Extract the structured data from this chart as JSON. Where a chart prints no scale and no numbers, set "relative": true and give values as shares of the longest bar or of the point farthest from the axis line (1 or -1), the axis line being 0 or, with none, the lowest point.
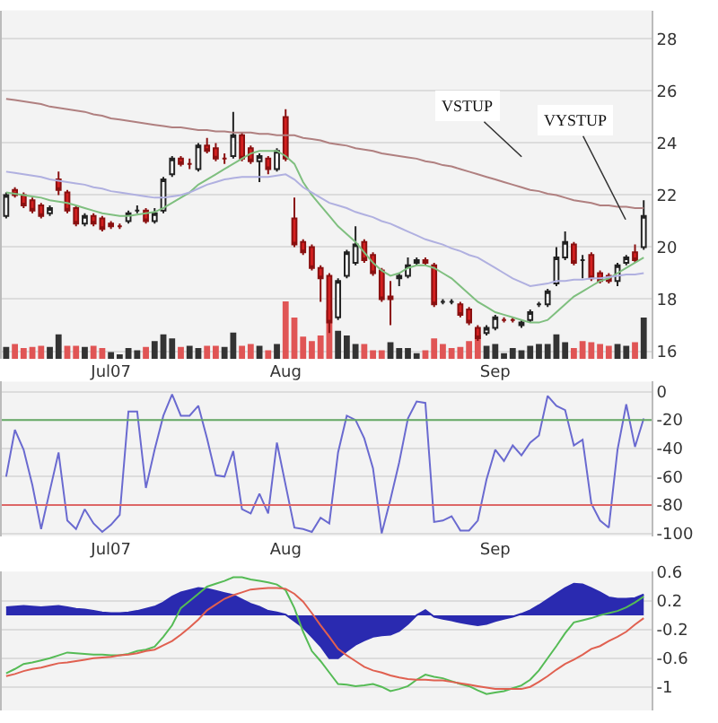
{
  "chart_data": [
    {
      "type": "candlestick",
      "categories": [
        null,
        null,
        null,
        null,
        null,
        null,
        null,
        null,
        null,
        null,
        null,
        null,
        "Jul07",
        null,
        null,
        null,
        null,
        null,
        null,
        null,
        null,
        null,
        null,
        null,
        null,
        null,
        null,
        null,
        null,
        null,
        null,
        null,
        "Aug",
        null,
        null,
        null,
        null,
        null,
        null,
        null,
        null,
        null,
        null,
        null,
        null,
        null,
        null,
        null,
        null,
        null,
        null,
        null,
        null,
        null,
        null,
        null,
        "Sep",
        null,
        null,
        null,
        null,
        null,
        null,
        null,
        null,
        null,
        null,
        null,
        null,
        null,
        null,
        null,
        null,
        null
      ],
      "ohlc": [
        [
          21.2,
          22.1,
          21.1,
          22.0
        ],
        [
          22.2,
          22.3,
          21.9,
          22.0
        ],
        [
          22.0,
          22.1,
          21.5,
          21.6
        ],
        [
          21.8,
          21.9,
          21.3,
          21.4
        ],
        [
          21.6,
          21.7,
          21.1,
          21.2
        ],
        [
          21.3,
          21.6,
          21.2,
          21.5
        ],
        [
          22.6,
          22.9,
          22.0,
          22.2
        ],
        [
          22.1,
          22.2,
          21.3,
          21.4
        ],
        [
          21.5,
          21.6,
          20.8,
          20.9
        ],
        [
          20.9,
          21.3,
          20.8,
          21.2
        ],
        [
          21.2,
          21.3,
          20.8,
          20.9
        ],
        [
          21.1,
          21.2,
          20.6,
          20.7
        ],
        [
          20.9,
          21.0,
          20.7,
          20.8
        ],
        [
          20.8,
          20.9,
          20.7,
          20.8
        ],
        [
          21.0,
          21.4,
          20.9,
          21.3
        ],
        [
          21.4,
          21.6,
          21.3,
          21.4
        ],
        [
          21.4,
          21.5,
          20.9,
          21.0
        ],
        [
          21.0,
          21.5,
          20.9,
          21.3
        ],
        [
          21.4,
          22.7,
          21.3,
          22.6
        ],
        [
          22.8,
          23.5,
          22.7,
          23.4
        ],
        [
          23.4,
          23.5,
          23.1,
          23.2
        ],
        [
          23.2,
          23.4,
          23.0,
          23.2
        ],
        [
          23.0,
          24.0,
          22.9,
          23.9
        ],
        [
          23.9,
          24.2,
          23.6,
          23.7
        ],
        [
          23.8,
          24.0,
          23.3,
          23.4
        ],
        [
          23.4,
          23.6,
          23.2,
          23.4
        ],
        [
          23.5,
          25.2,
          23.4,
          24.3
        ],
        [
          24.3,
          24.4,
          23.3,
          23.4
        ],
        [
          23.8,
          23.9,
          23.2,
          23.3
        ],
        [
          23.3,
          23.6,
          22.5,
          23.5
        ],
        [
          23.4,
          23.5,
          22.8,
          23.0
        ],
        [
          23.0,
          23.8,
          22.9,
          23.7
        ],
        [
          25.0,
          25.3,
          23.3,
          23.4
        ],
        [
          21.1,
          21.9,
          20.0,
          20.1
        ],
        [
          20.2,
          20.3,
          19.7,
          19.8
        ],
        [
          20.0,
          20.1,
          19.1,
          19.2
        ],
        [
          19.2,
          19.3,
          17.9,
          18.8
        ],
        [
          18.9,
          19.0,
          16.7,
          17.1
        ],
        [
          17.3,
          18.8,
          17.2,
          18.7
        ],
        [
          18.9,
          19.9,
          18.8,
          19.8
        ],
        [
          19.4,
          20.8,
          19.3,
          20.1
        ],
        [
          20.2,
          20.3,
          19.4,
          19.5
        ],
        [
          19.7,
          19.8,
          18.9,
          19.0
        ],
        [
          19.1,
          19.2,
          17.9,
          18.0
        ],
        [
          18.1,
          18.7,
          17.0,
          18.0
        ],
        [
          18.8,
          19.0,
          18.5,
          18.9
        ],
        [
          18.9,
          19.6,
          18.8,
          19.3
        ],
        [
          19.4,
          19.6,
          19.3,
          19.5
        ],
        [
          19.5,
          19.6,
          19.3,
          19.4
        ],
        [
          19.3,
          19.4,
          17.7,
          17.8
        ],
        [
          17.9,
          18.0,
          17.8,
          17.9
        ],
        [
          17.9,
          18.0,
          17.8,
          17.9
        ],
        [
          17.8,
          17.9,
          17.3,
          17.4
        ],
        [
          17.6,
          17.7,
          17.0,
          17.1
        ],
        [
          16.9,
          17.0,
          16.4,
          16.5
        ],
        [
          16.7,
          17.0,
          16.6,
          16.9
        ],
        [
          16.9,
          17.4,
          16.8,
          17.3
        ],
        [
          17.2,
          17.3,
          17.1,
          17.2
        ],
        [
          17.2,
          17.3,
          17.1,
          17.2
        ],
        [
          17.0,
          17.2,
          16.9,
          17.1
        ],
        [
          17.2,
          17.6,
          17.1,
          17.5
        ],
        [
          17.8,
          17.9,
          17.7,
          17.8
        ],
        [
          17.8,
          18.4,
          17.7,
          18.3
        ],
        [
          18.6,
          20.0,
          18.5,
          19.6
        ],
        [
          19.6,
          20.6,
          19.5,
          20.2
        ],
        [
          20.1,
          20.2,
          19.3,
          19.4
        ],
        [
          19.5,
          19.7,
          18.8,
          19.5
        ],
        [
          19.7,
          19.8,
          18.7,
          18.8
        ],
        [
          19.0,
          19.1,
          18.6,
          18.7
        ],
        [
          18.9,
          19.0,
          18.6,
          18.7
        ],
        [
          18.7,
          19.4,
          18.5,
          19.3
        ],
        [
          19.4,
          19.7,
          19.3,
          19.6
        ],
        [
          19.8,
          20.1,
          19.4,
          19.5
        ],
        [
          20.0,
          21.8,
          19.9,
          21.2
        ]
      ],
      "series": [
        {
          "type": "line",
          "color": "#7fbf7f",
          "values": [
            22.1,
            22.05,
            22.0,
            21.95,
            21.9,
            21.8,
            21.75,
            21.7,
            21.6,
            21.5,
            21.4,
            21.3,
            21.25,
            21.2,
            21.2,
            21.25,
            21.3,
            21.35,
            21.5,
            21.7,
            21.9,
            22.1,
            22.4,
            22.6,
            22.8,
            23.0,
            23.2,
            23.4,
            23.6,
            23.7,
            23.7,
            23.7,
            23.5,
            23.2,
            22.5,
            22.0,
            21.6,
            21.2,
            20.8,
            20.5,
            20.2,
            19.8,
            19.4,
            19.1,
            18.9,
            19.0,
            19.2,
            19.3,
            19.3,
            19.2,
            19.0,
            18.8,
            18.5,
            18.2,
            17.9,
            17.7,
            17.5,
            17.4,
            17.3,
            17.2,
            17.1,
            17.1,
            17.2,
            17.5,
            17.8,
            18.1,
            18.3,
            18.5,
            18.7,
            18.8,
            19.0,
            19.2,
            19.4,
            19.6
          ]
        },
        {
          "type": "line",
          "color": "#b0b0e0",
          "values": [
            22.9,
            22.85,
            22.8,
            22.75,
            22.7,
            22.6,
            22.55,
            22.5,
            22.45,
            22.4,
            22.3,
            22.25,
            22.15,
            22.1,
            22.05,
            22.0,
            21.95,
            21.9,
            21.9,
            21.95,
            22.0,
            22.1,
            22.25,
            22.4,
            22.5,
            22.6,
            22.65,
            22.7,
            22.7,
            22.7,
            22.7,
            22.75,
            22.8,
            22.6,
            22.3,
            22.1,
            21.9,
            21.7,
            21.6,
            21.5,
            21.35,
            21.25,
            21.15,
            21.0,
            20.9,
            20.75,
            20.6,
            20.45,
            20.3,
            20.2,
            20.1,
            19.95,
            19.85,
            19.7,
            19.6,
            19.4,
            19.2,
            19.0,
            18.8,
            18.65,
            18.5,
            18.55,
            18.6,
            18.7,
            18.7,
            18.75,
            18.75,
            18.8,
            18.8,
            18.85,
            18.9,
            18.95,
            18.95,
            19.0
          ]
        },
        {
          "type": "line",
          "color": "#b08080",
          "values": [
            25.7,
            25.65,
            25.6,
            25.55,
            25.5,
            25.4,
            25.35,
            25.3,
            25.25,
            25.2,
            25.1,
            25.05,
            24.95,
            24.9,
            24.85,
            24.8,
            24.75,
            24.7,
            24.65,
            24.6,
            24.6,
            24.55,
            24.5,
            24.5,
            24.45,
            24.45,
            24.4,
            24.4,
            24.4,
            24.35,
            24.35,
            24.3,
            24.3,
            24.3,
            24.2,
            24.15,
            24.1,
            24.0,
            23.95,
            23.9,
            23.8,
            23.75,
            23.7,
            23.6,
            23.55,
            23.5,
            23.45,
            23.4,
            23.3,
            23.25,
            23.15,
            23.1,
            23.0,
            22.9,
            22.8,
            22.7,
            22.6,
            22.5,
            22.4,
            22.3,
            22.2,
            22.15,
            22.05,
            22.0,
            21.9,
            21.8,
            21.75,
            21.7,
            21.6,
            21.6,
            21.55,
            21.55,
            21.5,
            21.5
          ]
        }
      ],
      "ylim": [
        15.7,
        29.1
      ],
      "yticks": [
        16,
        18,
        20,
        22,
        24,
        26,
        28
      ],
      "grid": "y",
      "annotations": [
        "VSTUP",
        "VYSTUP"
      ]
    },
    {
      "type": "bar",
      "relative": true,
      "tick_labels": false,
      "categories": [
        null,
        null,
        null,
        null,
        null,
        null,
        null,
        null,
        null,
        null,
        null,
        null,
        null,
        null,
        null,
        null,
        null,
        null,
        null,
        null,
        null,
        null,
        null,
        null,
        null,
        null,
        null,
        null,
        null,
        null,
        null,
        null,
        null,
        null,
        null,
        null,
        null,
        null,
        null,
        null,
        null,
        null,
        null,
        null,
        null,
        null,
        null,
        null,
        null,
        null,
        null,
        null,
        null,
        null,
        null,
        null,
        null,
        null,
        null,
        null,
        null,
        null,
        null,
        null,
        null,
        null,
        null,
        null,
        null,
        null,
        null,
        null,
        null,
        null
      ],
      "values": [
        0.21,
        0.26,
        0.19,
        0.21,
        0.23,
        0.21,
        0.43,
        0.23,
        0.23,
        0.21,
        0.23,
        0.19,
        0.12,
        0.08,
        0.19,
        0.15,
        0.21,
        0.31,
        0.43,
        0.36,
        0.21,
        0.23,
        0.19,
        0.23,
        0.23,
        0.21,
        0.46,
        0.23,
        0.26,
        0.23,
        0.15,
        0.26,
        1.0,
        0.72,
        0.39,
        0.31,
        0.41,
        0.85,
        0.49,
        0.41,
        0.26,
        0.26,
        0.15,
        0.15,
        0.29,
        0.19,
        0.19,
        0.1,
        0.15,
        0.36,
        0.26,
        0.19,
        0.21,
        0.31,
        0.43,
        0.23,
        0.26,
        0.1,
        0.19,
        0.15,
        0.23,
        0.26,
        0.26,
        0.43,
        0.29,
        0.19,
        0.31,
        0.29,
        0.26,
        0.23,
        0.26,
        0.23,
        0.29,
        0.72
      ],
      "colors": [
        "#333333",
        "#e05555",
        "#e05555",
        "#e05555",
        "#e05555",
        "#333333",
        "#333333",
        "#e05555",
        "#e05555",
        "#333333",
        "#e05555",
        "#e05555",
        "#333333",
        "#333333",
        "#333333",
        "#333333",
        "#e05555",
        "#333333",
        "#333333",
        "#333333",
        "#e05555",
        "#333333",
        "#333333",
        "#e05555",
        "#e05555",
        "#333333",
        "#333333",
        "#e05555",
        "#e05555",
        "#333333",
        "#e05555",
        "#333333",
        "#e05555",
        "#e05555",
        "#e05555",
        "#e05555",
        "#e05555",
        "#e05555",
        "#333333",
        "#333333",
        "#333333",
        "#e05555",
        "#e05555",
        "#e05555",
        "#333333",
        "#333333",
        "#333333",
        "#333333",
        "#e05555",
        "#e05555",
        "#e05555",
        "#e05555",
        "#e05555",
        "#e05555",
        "#e05555",
        "#333333",
        "#333333",
        "#333333",
        "#333333",
        "#333333",
        "#333333",
        "#333333",
        "#333333",
        "#333333",
        "#333333",
        "#e05555",
        "#e05555",
        "#e05555",
        "#e05555",
        "#e05555",
        "#333333",
        "#333333",
        "#e05555",
        "#333333"
      ]
    },
    {
      "type": "line",
      "categories": [
        null,
        null,
        null,
        null,
        null,
        null,
        null,
        null,
        null,
        null,
        null,
        null,
        "Jul07",
        null,
        null,
        null,
        null,
        null,
        null,
        null,
        null,
        null,
        null,
        null,
        null,
        null,
        null,
        null,
        null,
        null,
        null,
        null,
        "Aug",
        null,
        null,
        null,
        null,
        null,
        null,
        null,
        null,
        null,
        null,
        null,
        null,
        null,
        null,
        null,
        null,
        null,
        null,
        null,
        null,
        null,
        null,
        null,
        "Sep",
        null,
        null,
        null,
        null,
        null,
        null,
        null,
        null,
        null,
        null,
        null,
        null,
        null,
        null,
        null,
        null,
        null
      ],
      "series": [
        {
          "color": "#6a6ad0",
          "values": [
            -60,
            -27,
            -41,
            -66,
            -97,
            -70,
            -43,
            -91,
            -97,
            -83,
            -93,
            -99,
            -94,
            -87,
            -14,
            -14,
            -68,
            -41,
            -17,
            -2,
            -17,
            -17,
            -10,
            -33,
            -59,
            -60,
            -42,
            -83,
            -86,
            -72,
            -86,
            -36,
            -66,
            -96,
            -97,
            -99,
            -89,
            -93,
            -43,
            -17,
            -20,
            -33,
            -54,
            -100,
            -76,
            -50,
            -19,
            -7,
            -8,
            -92,
            -91,
            -88,
            -98,
            -98,
            -91,
            -62,
            -41,
            -49,
            -38,
            -45,
            -36,
            -31,
            -3,
            -10,
            -13,
            -38,
            -34,
            -79,
            -91,
            -96,
            -41,
            -9,
            -39,
            -19
          ]
        }
      ],
      "ylim": [
        -102,
        7
      ],
      "yticks": [
        0,
        -20,
        -40,
        -60,
        -80,
        -100
      ],
      "grid": "y",
      "ref_lines": [
        {
          "axis": "y",
          "value": -20,
          "color": "#66aa66"
        },
        {
          "axis": "y",
          "value": -80,
          "color": "#dd6666"
        }
      ]
    },
    {
      "type": "line",
      "tick_labels": "y",
      "categories": [
        null,
        null,
        null,
        null,
        null,
        null,
        null,
        null,
        null,
        null,
        null,
        null,
        null,
        null,
        null,
        null,
        null,
        null,
        null,
        null,
        null,
        null,
        null,
        null,
        null,
        null,
        null,
        null,
        null,
        null,
        null,
        null,
        null,
        null,
        null,
        null,
        null,
        null,
        null,
        null,
        null,
        null,
        null,
        null,
        null,
        null,
        null,
        null,
        null,
        null,
        null,
        null,
        null,
        null,
        null,
        null,
        null,
        null,
        null,
        null,
        null,
        null,
        null,
        null,
        null,
        null,
        null,
        null,
        null,
        null,
        null,
        null,
        null,
        null
      ],
      "series": [
        {
          "type": "area",
          "color": "#2a2ab0",
          "values": [
            0.11,
            0.12,
            0.13,
            0.12,
            0.11,
            0.12,
            0.13,
            0.11,
            0.09,
            0.08,
            0.06,
            0.04,
            0.03,
            0.03,
            0.04,
            0.06,
            0.09,
            0.12,
            0.18,
            0.26,
            0.32,
            0.35,
            0.38,
            0.37,
            0.34,
            0.31,
            0.28,
            0.22,
            0.16,
            0.12,
            0.06,
            0.04,
            0.01,
            -0.08,
            -0.17,
            -0.3,
            -0.43,
            -0.6,
            -0.6,
            -0.5,
            -0.41,
            -0.35,
            -0.3,
            -0.28,
            -0.27,
            -0.22,
            -0.12,
            0.0,
            0.07,
            -0.02,
            -0.05,
            -0.07,
            -0.1,
            -0.12,
            -0.14,
            -0.12,
            -0.08,
            -0.05,
            -0.02,
            0.02,
            0.07,
            0.14,
            0.22,
            0.3,
            0.38,
            0.44,
            0.43,
            0.38,
            0.32,
            0.25,
            0.23,
            0.23,
            0.24,
            0.29
          ]
        },
        {
          "type": "line",
          "color": "#55bb55",
          "values": [
            -0.81,
            -0.75,
            -0.68,
            -0.66,
            -0.63,
            -0.6,
            -0.56,
            -0.52,
            -0.53,
            -0.54,
            -0.55,
            -0.55,
            -0.56,
            -0.56,
            -0.54,
            -0.5,
            -0.48,
            -0.44,
            -0.3,
            -0.14,
            0.1,
            0.2,
            0.3,
            0.4,
            0.44,
            0.48,
            0.53,
            0.53,
            0.5,
            0.48,
            0.46,
            0.43,
            0.35,
            0.1,
            -0.23,
            -0.5,
            -0.64,
            -0.8,
            -0.96,
            -0.97,
            -0.99,
            -0.98,
            -0.96,
            -1.0,
            -1.06,
            -1.03,
            -0.99,
            -0.9,
            -0.83,
            -0.86,
            -0.88,
            -0.92,
            -0.96,
            -0.99,
            -1.05,
            -1.1,
            -1.08,
            -1.06,
            -1.02,
            -0.98,
            -0.9,
            -0.77,
            -0.6,
            -0.43,
            -0.25,
            -0.1,
            -0.07,
            -0.04,
            0.0,
            0.03,
            0.06,
            0.11,
            0.18,
            0.26
          ]
        },
        {
          "type": "line",
          "color": "#e06050",
          "values": [
            -0.85,
            -0.82,
            -0.78,
            -0.75,
            -0.73,
            -0.7,
            -0.67,
            -0.66,
            -0.64,
            -0.62,
            -0.6,
            -0.59,
            -0.58,
            -0.56,
            -0.55,
            -0.53,
            -0.5,
            -0.48,
            -0.42,
            -0.36,
            -0.27,
            -0.17,
            -0.06,
            0.07,
            0.15,
            0.23,
            0.28,
            0.32,
            0.36,
            0.37,
            0.38,
            0.38,
            0.37,
            0.3,
            0.19,
            0.03,
            -0.14,
            -0.3,
            -0.47,
            -0.56,
            -0.64,
            -0.72,
            -0.77,
            -0.8,
            -0.84,
            -0.87,
            -0.89,
            -0.9,
            -0.9,
            -0.91,
            -0.91,
            -0.93,
            -0.95,
            -0.97,
            -0.99,
            -1.01,
            -1.03,
            -1.03,
            -1.03,
            -1.03,
            -1.0,
            -0.93,
            -0.85,
            -0.76,
            -0.68,
            -0.62,
            -0.55,
            -0.47,
            -0.43,
            -0.36,
            -0.3,
            -0.23,
            -0.13,
            -0.04
          ]
        }
      ],
      "ylim": [
        -1.33,
        0.61
      ],
      "yticks": [
        0.6,
        0.2,
        -0.2,
        -0.6,
        -1
      ],
      "grid": "y"
    }
  ]
}
